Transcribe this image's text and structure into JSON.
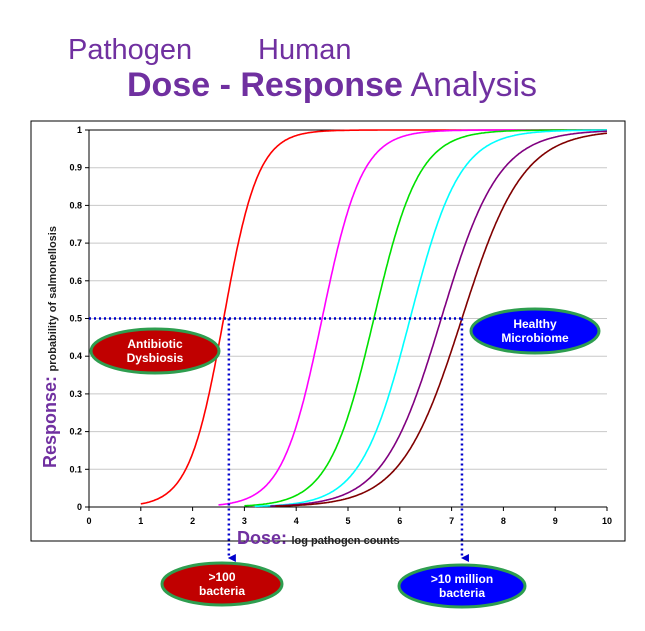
{
  "heading": {
    "line1_left": "Pathogen",
    "line1_right": "Human",
    "line2_bold1": "Dose",
    "line2_dash": "-",
    "line2_bold2": "Response",
    "line2_rest": "Analysis"
  },
  "labels": {
    "response_big": "Response:",
    "response_small": "probability of salmonellosis",
    "dose_big": "Dose:",
    "dose_small": "log pathogen counts"
  },
  "ovals": {
    "antibiotic": [
      "Antibiotic",
      "Dysbiosis"
    ],
    "healthy": [
      "Healthy",
      "Microbiome"
    ],
    "low_dose": [
      ">100",
      "bacteria"
    ],
    "high_dose": [
      ">10 million",
      "bacteria"
    ]
  },
  "colors": {
    "title": "#7030a0",
    "red_oval": "#c00000",
    "blue_oval": "#0000ff",
    "oval_border": "#2e9e4f",
    "guide_line": "#0000cc"
  },
  "chart_data": {
    "type": "line",
    "xlim": [
      0,
      10
    ],
    "ylim": [
      0,
      1
    ],
    "x_ticks": [
      "0",
      "1",
      "2",
      "3",
      "4",
      "5",
      "6",
      "7",
      "8",
      "9",
      "10"
    ],
    "y_ticks": [
      "0",
      "0.1",
      "0.2",
      "0.3",
      "0.4",
      "0.5",
      "0.6",
      "0.7",
      "0.8",
      "0.9",
      "1"
    ],
    "grid": "horizontal",
    "series": [
      {
        "color": "#ff0000",
        "midpoint": 2.6,
        "slope": 3.0,
        "start": 1.0
      },
      {
        "color": "#ff00ff",
        "midpoint": 4.5,
        "slope": 2.6,
        "start": 2.5
      },
      {
        "color": "#00e000",
        "midpoint": 5.5,
        "slope": 2.3,
        "start": 3.0
      },
      {
        "color": "#00ffff",
        "midpoint": 6.2,
        "slope": 2.1,
        "start": 3.2
      },
      {
        "color": "#800080",
        "midpoint": 6.8,
        "slope": 1.8,
        "start": 3.5
      },
      {
        "color": "#800000",
        "midpoint": 7.2,
        "slope": 1.7,
        "start": 3.6
      }
    ],
    "reference_level": 0.5,
    "reference_x": [
      2.7,
      7.2
    ]
  }
}
